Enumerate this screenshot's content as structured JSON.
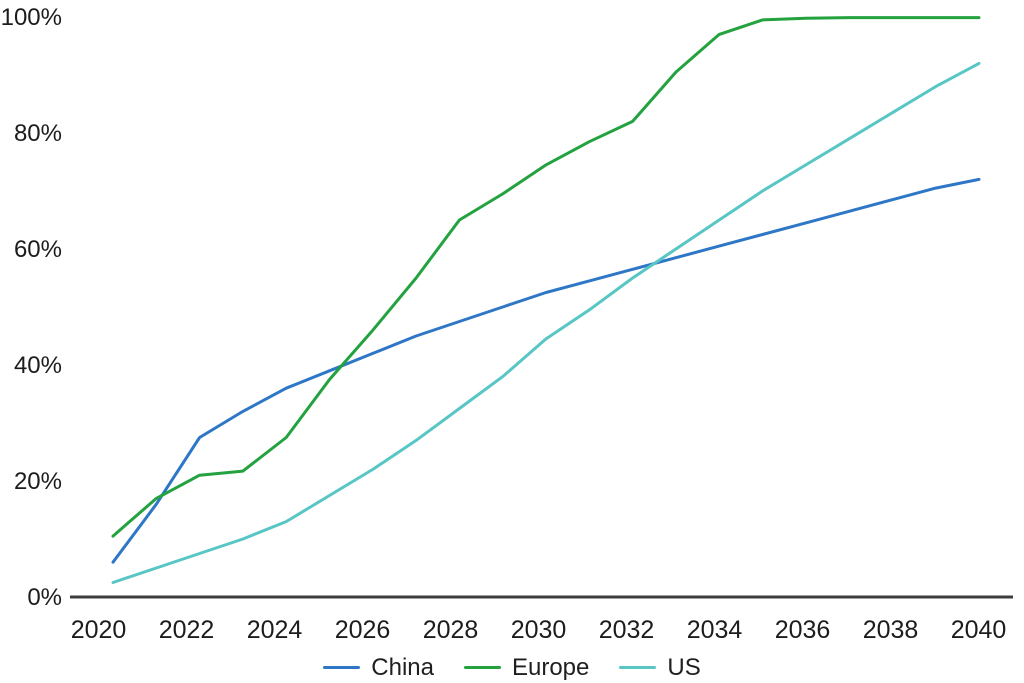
{
  "chart_data": {
    "type": "line",
    "title": "",
    "xlabel": "",
    "ylabel": "",
    "x": [
      2020,
      2021,
      2022,
      2023,
      2024,
      2025,
      2026,
      2027,
      2028,
      2029,
      2030,
      2031,
      2032,
      2033,
      2034,
      2035,
      2036,
      2037,
      2038,
      2039,
      2040
    ],
    "x_ticks": [
      2020,
      2022,
      2024,
      2026,
      2028,
      2030,
      2032,
      2034,
      2036,
      2038,
      2040
    ],
    "x_tick_labels": [
      "2020",
      "2022",
      "2024",
      "2026",
      "2028",
      "2030",
      "2032",
      "2034",
      "2036",
      "2038",
      "2040"
    ],
    "y_ticks": [
      0,
      20,
      40,
      60,
      80,
      100
    ],
    "y_tick_labels": [
      "0%",
      "20%",
      "40%",
      "60%",
      "80%",
      "100%"
    ],
    "xlim": [
      2020,
      2040
    ],
    "ylim": [
      0,
      100
    ],
    "grid": false,
    "legend_position": "bottom-center",
    "series": [
      {
        "name": "China",
        "color": "#2e77c6",
        "values": [
          6,
          16,
          27.5,
          32,
          36,
          39,
          42,
          45,
          47.5,
          50,
          52.5,
          54.5,
          56.5,
          58.5,
          60.5,
          62.5,
          64.5,
          66.5,
          68.5,
          70.5,
          72
        ]
      },
      {
        "name": "Europe",
        "color": "#23a23f",
        "values": [
          10.5,
          17,
          21,
          21.7,
          27.5,
          37.5,
          46,
          55,
          65,
          69.5,
          74.5,
          78.5,
          82,
          90.5,
          97,
          99.5,
          99.8,
          99.9,
          99.9,
          99.9,
          99.9
        ]
      },
      {
        "name": "US",
        "color": "#57c6c4",
        "values": [
          2.5,
          5,
          7.5,
          10,
          13,
          17.5,
          22,
          27,
          32.5,
          38,
          44.5,
          49.5,
          55,
          60,
          65,
          70,
          74.5,
          79,
          83.5,
          88,
          92
        ]
      }
    ],
    "axis_color": "#3d3d3d",
    "tick_label_color": "#1c1c1c"
  }
}
